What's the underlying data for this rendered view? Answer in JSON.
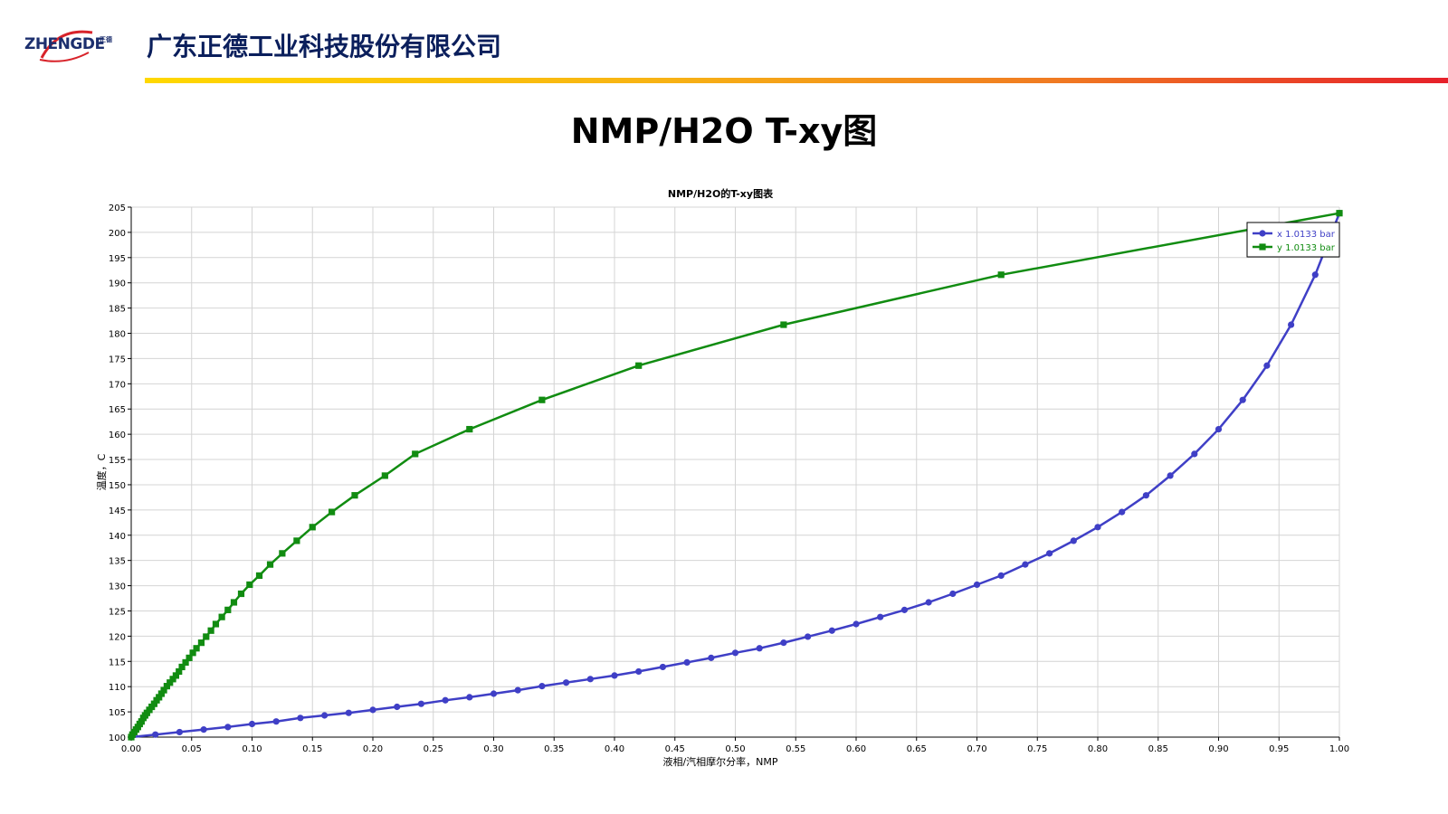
{
  "header": {
    "logo_text": "ZHENGDE",
    "logo_small": "正德",
    "company_name": "广东正德工业科技股份有限公司",
    "bar_colors": [
      "#ffd800",
      "#f07a22",
      "#e6202a"
    ]
  },
  "slide": {
    "title": "NMP/H2O T-xy图"
  },
  "chart_data": {
    "type": "line",
    "title": "NMP/H2O的T-xy图表",
    "xlabel": "液相/汽相摩尔分率，NMP",
    "ylabel": "温度，C",
    "xlim": [
      0,
      1
    ],
    "ylim": [
      100,
      205
    ],
    "x_ticks": [
      0.0,
      0.05,
      0.1,
      0.15,
      0.2,
      0.25,
      0.3,
      0.35,
      0.4,
      0.45,
      0.5,
      0.55,
      0.6,
      0.65,
      0.7,
      0.75,
      0.8,
      0.85,
      0.9,
      0.95,
      1.0
    ],
    "x_tick_labels": [
      "0.00",
      "0.05",
      "0.10",
      "0.15",
      "0.20",
      "0.25",
      "0.30",
      "0.35",
      "0.40",
      "0.45",
      "0.50",
      "0.55",
      "0.60",
      "0.65",
      "0.70",
      "0.75",
      "0.80",
      "0.85",
      "0.90",
      "0.95",
      "1.00"
    ],
    "y_ticks": [
      100,
      105,
      110,
      115,
      120,
      125,
      130,
      135,
      140,
      145,
      150,
      155,
      160,
      165,
      170,
      175,
      180,
      185,
      190,
      195,
      200,
      205
    ],
    "y_tick_labels": [
      "100",
      "105",
      "110",
      "115",
      "120",
      "125",
      "130",
      "135",
      "140",
      "145",
      "150",
      "155",
      "160",
      "165",
      "170",
      "175",
      "180",
      "185",
      "190",
      "195",
      "200",
      "205"
    ],
    "grid": true,
    "legend_position": "top-right",
    "series": [
      {
        "name": "x 1.0133 bar",
        "color": "#3f3fc6",
        "marker": "circle",
        "points": [
          [
            0.0,
            100.0
          ],
          [
            0.02,
            100.5
          ],
          [
            0.04,
            101.0
          ],
          [
            0.06,
            101.5
          ],
          [
            0.08,
            102.0
          ],
          [
            0.1,
            102.6
          ],
          [
            0.12,
            103.1
          ],
          [
            0.14,
            103.8
          ],
          [
            0.16,
            104.3
          ],
          [
            0.18,
            104.8
          ],
          [
            0.2,
            105.4
          ],
          [
            0.22,
            106.0
          ],
          [
            0.24,
            106.6
          ],
          [
            0.26,
            107.3
          ],
          [
            0.28,
            107.9
          ],
          [
            0.3,
            108.6
          ],
          [
            0.32,
            109.3
          ],
          [
            0.34,
            110.1
          ],
          [
            0.36,
            110.8
          ],
          [
            0.38,
            111.5
          ],
          [
            0.4,
            112.2
          ],
          [
            0.42,
            113.0
          ],
          [
            0.44,
            113.9
          ],
          [
            0.46,
            114.8
          ],
          [
            0.48,
            115.7
          ],
          [
            0.5,
            116.7
          ],
          [
            0.52,
            117.6
          ],
          [
            0.54,
            118.7
          ],
          [
            0.56,
            119.9
          ],
          [
            0.58,
            121.1
          ],
          [
            0.6,
            122.4
          ],
          [
            0.62,
            123.8
          ],
          [
            0.64,
            125.2
          ],
          [
            0.66,
            126.7
          ],
          [
            0.68,
            128.4
          ],
          [
            0.7,
            130.2
          ],
          [
            0.72,
            132.0
          ],
          [
            0.74,
            134.2
          ],
          [
            0.76,
            136.4
          ],
          [
            0.78,
            138.9
          ],
          [
            0.8,
            141.6
          ],
          [
            0.82,
            144.6
          ],
          [
            0.84,
            147.9
          ],
          [
            0.86,
            151.8
          ],
          [
            0.88,
            156.1
          ],
          [
            0.9,
            161.0
          ],
          [
            0.92,
            166.8
          ],
          [
            0.94,
            173.6
          ],
          [
            0.96,
            181.7
          ],
          [
            0.98,
            191.6
          ],
          [
            1.0,
            203.8
          ]
        ]
      },
      {
        "name": "y 1.0133 bar",
        "color": "#118c11",
        "marker": "square",
        "points": [
          [
            0.0,
            100.0
          ],
          [
            0.001,
            100.5
          ],
          [
            0.0025,
            101.0
          ],
          [
            0.004,
            101.5
          ],
          [
            0.0055,
            102.0
          ],
          [
            0.007,
            102.6
          ],
          [
            0.0085,
            103.1
          ],
          [
            0.01,
            103.8
          ],
          [
            0.0115,
            104.3
          ],
          [
            0.013,
            104.8
          ],
          [
            0.015,
            105.4
          ],
          [
            0.017,
            106.0
          ],
          [
            0.019,
            106.6
          ],
          [
            0.021,
            107.3
          ],
          [
            0.023,
            107.9
          ],
          [
            0.025,
            108.6
          ],
          [
            0.027,
            109.3
          ],
          [
            0.0295,
            110.1
          ],
          [
            0.032,
            110.8
          ],
          [
            0.0345,
            111.5
          ],
          [
            0.037,
            112.2
          ],
          [
            0.0395,
            113.0
          ],
          [
            0.042,
            113.9
          ],
          [
            0.045,
            114.8
          ],
          [
            0.048,
            115.7
          ],
          [
            0.051,
            116.7
          ],
          [
            0.054,
            117.6
          ],
          [
            0.058,
            118.7
          ],
          [
            0.062,
            119.9
          ],
          [
            0.066,
            121.1
          ],
          [
            0.07,
            122.4
          ],
          [
            0.075,
            123.8
          ],
          [
            0.08,
            125.2
          ],
          [
            0.085,
            126.7
          ],
          [
            0.091,
            128.4
          ],
          [
            0.098,
            130.2
          ],
          [
            0.106,
            132.0
          ],
          [
            0.115,
            134.2
          ],
          [
            0.125,
            136.4
          ],
          [
            0.137,
            138.9
          ],
          [
            0.15,
            141.6
          ],
          [
            0.166,
            144.6
          ],
          [
            0.185,
            147.9
          ],
          [
            0.21,
            151.8
          ],
          [
            0.235,
            156.1
          ],
          [
            0.28,
            161.0
          ],
          [
            0.34,
            166.8
          ],
          [
            0.42,
            173.6
          ],
          [
            0.54,
            181.7
          ],
          [
            0.72,
            191.6
          ],
          [
            1.0,
            203.8
          ]
        ]
      }
    ]
  }
}
